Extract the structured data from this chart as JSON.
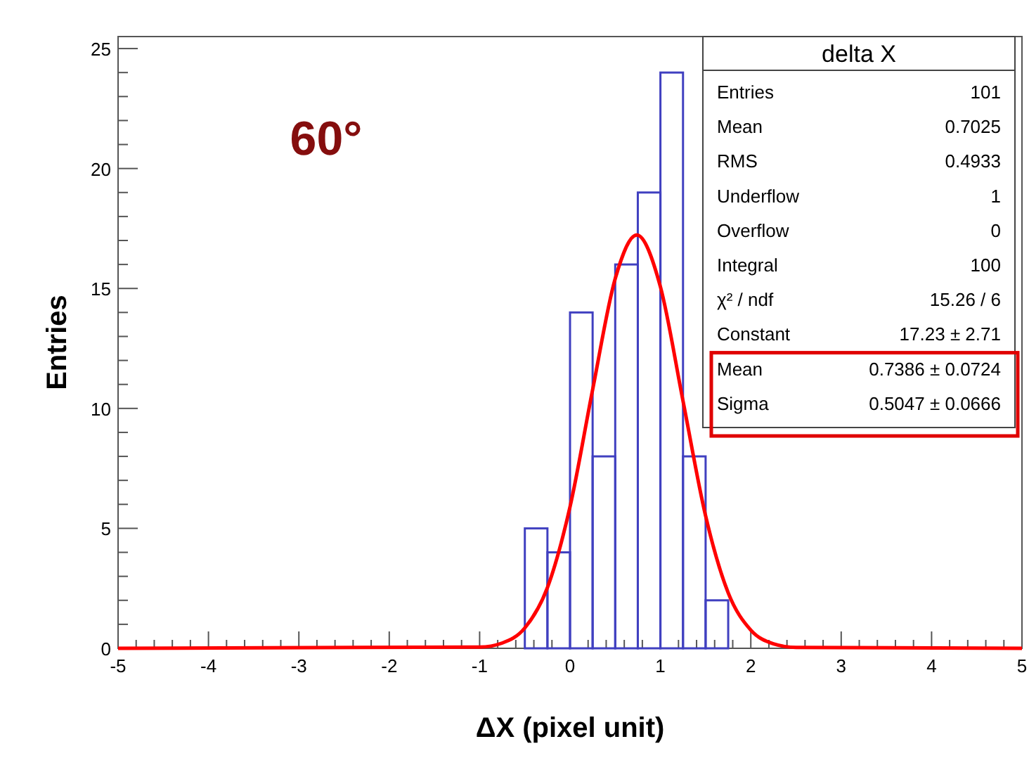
{
  "chart_data": {
    "type": "histogram",
    "xlabel": "ΔX (pixel unit)",
    "ylabel": "Entries",
    "xlim": [
      -5,
      5
    ],
    "ylim": [
      0,
      25.5
    ],
    "xticks": [
      -5,
      -4,
      -3,
      -2,
      -1,
      0,
      1,
      2,
      3,
      4,
      5,
      {
        "value": -4.8,
        "label": null
      },
      {
        "value": -4.6,
        "label": null
      },
      {
        "value": -4.4,
        "label": null
      },
      {
        "value": -4.2,
        "label": null
      },
      {
        "value": -3.8,
        "label": null
      },
      {
        "value": -3.6,
        "label": null
      },
      {
        "value": -3.4,
        "label": null
      },
      {
        "value": -3.2,
        "label": null
      },
      {
        "value": -2.8,
        "label": null
      },
      {
        "value": -2.6,
        "label": null
      },
      {
        "value": -2.4,
        "label": null
      },
      {
        "value": -2.2,
        "label": null
      },
      {
        "value": -1.8,
        "label": null
      },
      {
        "value": -1.6,
        "label": null
      },
      {
        "value": -1.4,
        "label": null
      },
      {
        "value": -1.2,
        "label": null
      },
      {
        "value": -0.8,
        "label": null
      },
      {
        "value": -0.6,
        "label": null
      },
      {
        "value": -0.4,
        "label": null
      },
      {
        "value": -0.2,
        "label": null
      },
      {
        "value": 0.2,
        "label": null
      },
      {
        "value": 0.4,
        "label": null
      },
      {
        "value": 0.6,
        "label": null
      },
      {
        "value": 0.8,
        "label": null
      },
      {
        "value": 1.2,
        "label": null
      },
      {
        "value": 1.4,
        "label": null
      },
      {
        "value": 1.6,
        "label": null
      },
      {
        "value": 1.8,
        "label": null
      },
      {
        "value": 2.2,
        "label": null
      },
      {
        "value": 2.4,
        "label": null
      },
      {
        "value": 2.6,
        "label": null
      },
      {
        "value": 2.8,
        "label": null
      },
      {
        "value": 3.2,
        "label": null
      },
      {
        "value": 3.4,
        "label": null
      },
      {
        "value": 3.6,
        "label": null
      },
      {
        "value": 3.8,
        "label": null
      },
      {
        "value": 4.2,
        "label": null
      },
      {
        "value": 4.4,
        "label": null
      },
      {
        "value": 4.6,
        "label": null
      },
      {
        "value": 4.8,
        "label": null
      }
    ],
    "yticks": [
      0,
      5,
      10,
      15,
      20,
      25,
      {
        "value": 1,
        "label": null
      },
      {
        "value": 2,
        "label": null
      },
      {
        "value": 3,
        "label": null
      },
      {
        "value": 4,
        "label": null
      },
      {
        "value": 6,
        "label": null
      },
      {
        "value": 7,
        "label": null
      },
      {
        "value": 8,
        "label": null
      },
      {
        "value": 9,
        "label": null
      },
      {
        "value": 11,
        "label": null
      },
      {
        "value": 12,
        "label": null
      },
      {
        "value": 13,
        "label": null
      },
      {
        "value": 14,
        "label": null
      },
      {
        "value": 16,
        "label": null
      },
      {
        "value": 17,
        "label": null
      },
      {
        "value": 18,
        "label": null
      },
      {
        "value": 19,
        "label": null
      },
      {
        "value": 21,
        "label": null
      },
      {
        "value": 22,
        "label": null
      },
      {
        "value": 23,
        "label": null
      },
      {
        "value": 24,
        "label": null
      }
    ],
    "series": [
      {
        "color": "#4040c0",
        "bins": [
          -0.5,
          -0.25,
          0,
          0.25,
          0.5,
          0.75,
          1,
          1.25,
          1.5,
          1.75
        ],
        "values": [
          5,
          4,
          14,
          8,
          16,
          19,
          24,
          8,
          2
        ]
      },
      {
        "type": "line",
        "color": "#ff0000",
        "x": [
          -5,
          -1,
          -0.75,
          -0.5,
          -0.25,
          0,
          0.25,
          0.5,
          0.7386,
          1,
          1.25,
          1.5,
          1.75,
          2,
          2.25,
          2.5,
          5
        ],
        "values": [
          0,
          0.05,
          0.22,
          0.85,
          2.53,
          5.9,
          10.78,
          15.41,
          17.23,
          15.07,
          10.31,
          5.52,
          2.31,
          0.76,
          0.19,
          0.04,
          0
        ]
      }
    ],
    "annotations": [
      "60°",
      "delta X",
      "Entries",
      "101",
      "Mean",
      "0.7025",
      "RMS",
      "0.4933",
      "Underflow",
      "1",
      "Overflow",
      "0",
      "Integral",
      "100",
      "χ² / ndf",
      "15.26 / 6",
      "Constant",
      "17.23 ± 2.71",
      "Mean",
      "0.7386 ± 0.0724",
      "Sigma",
      "0.5047 ± 0.0666"
    ]
  }
}
